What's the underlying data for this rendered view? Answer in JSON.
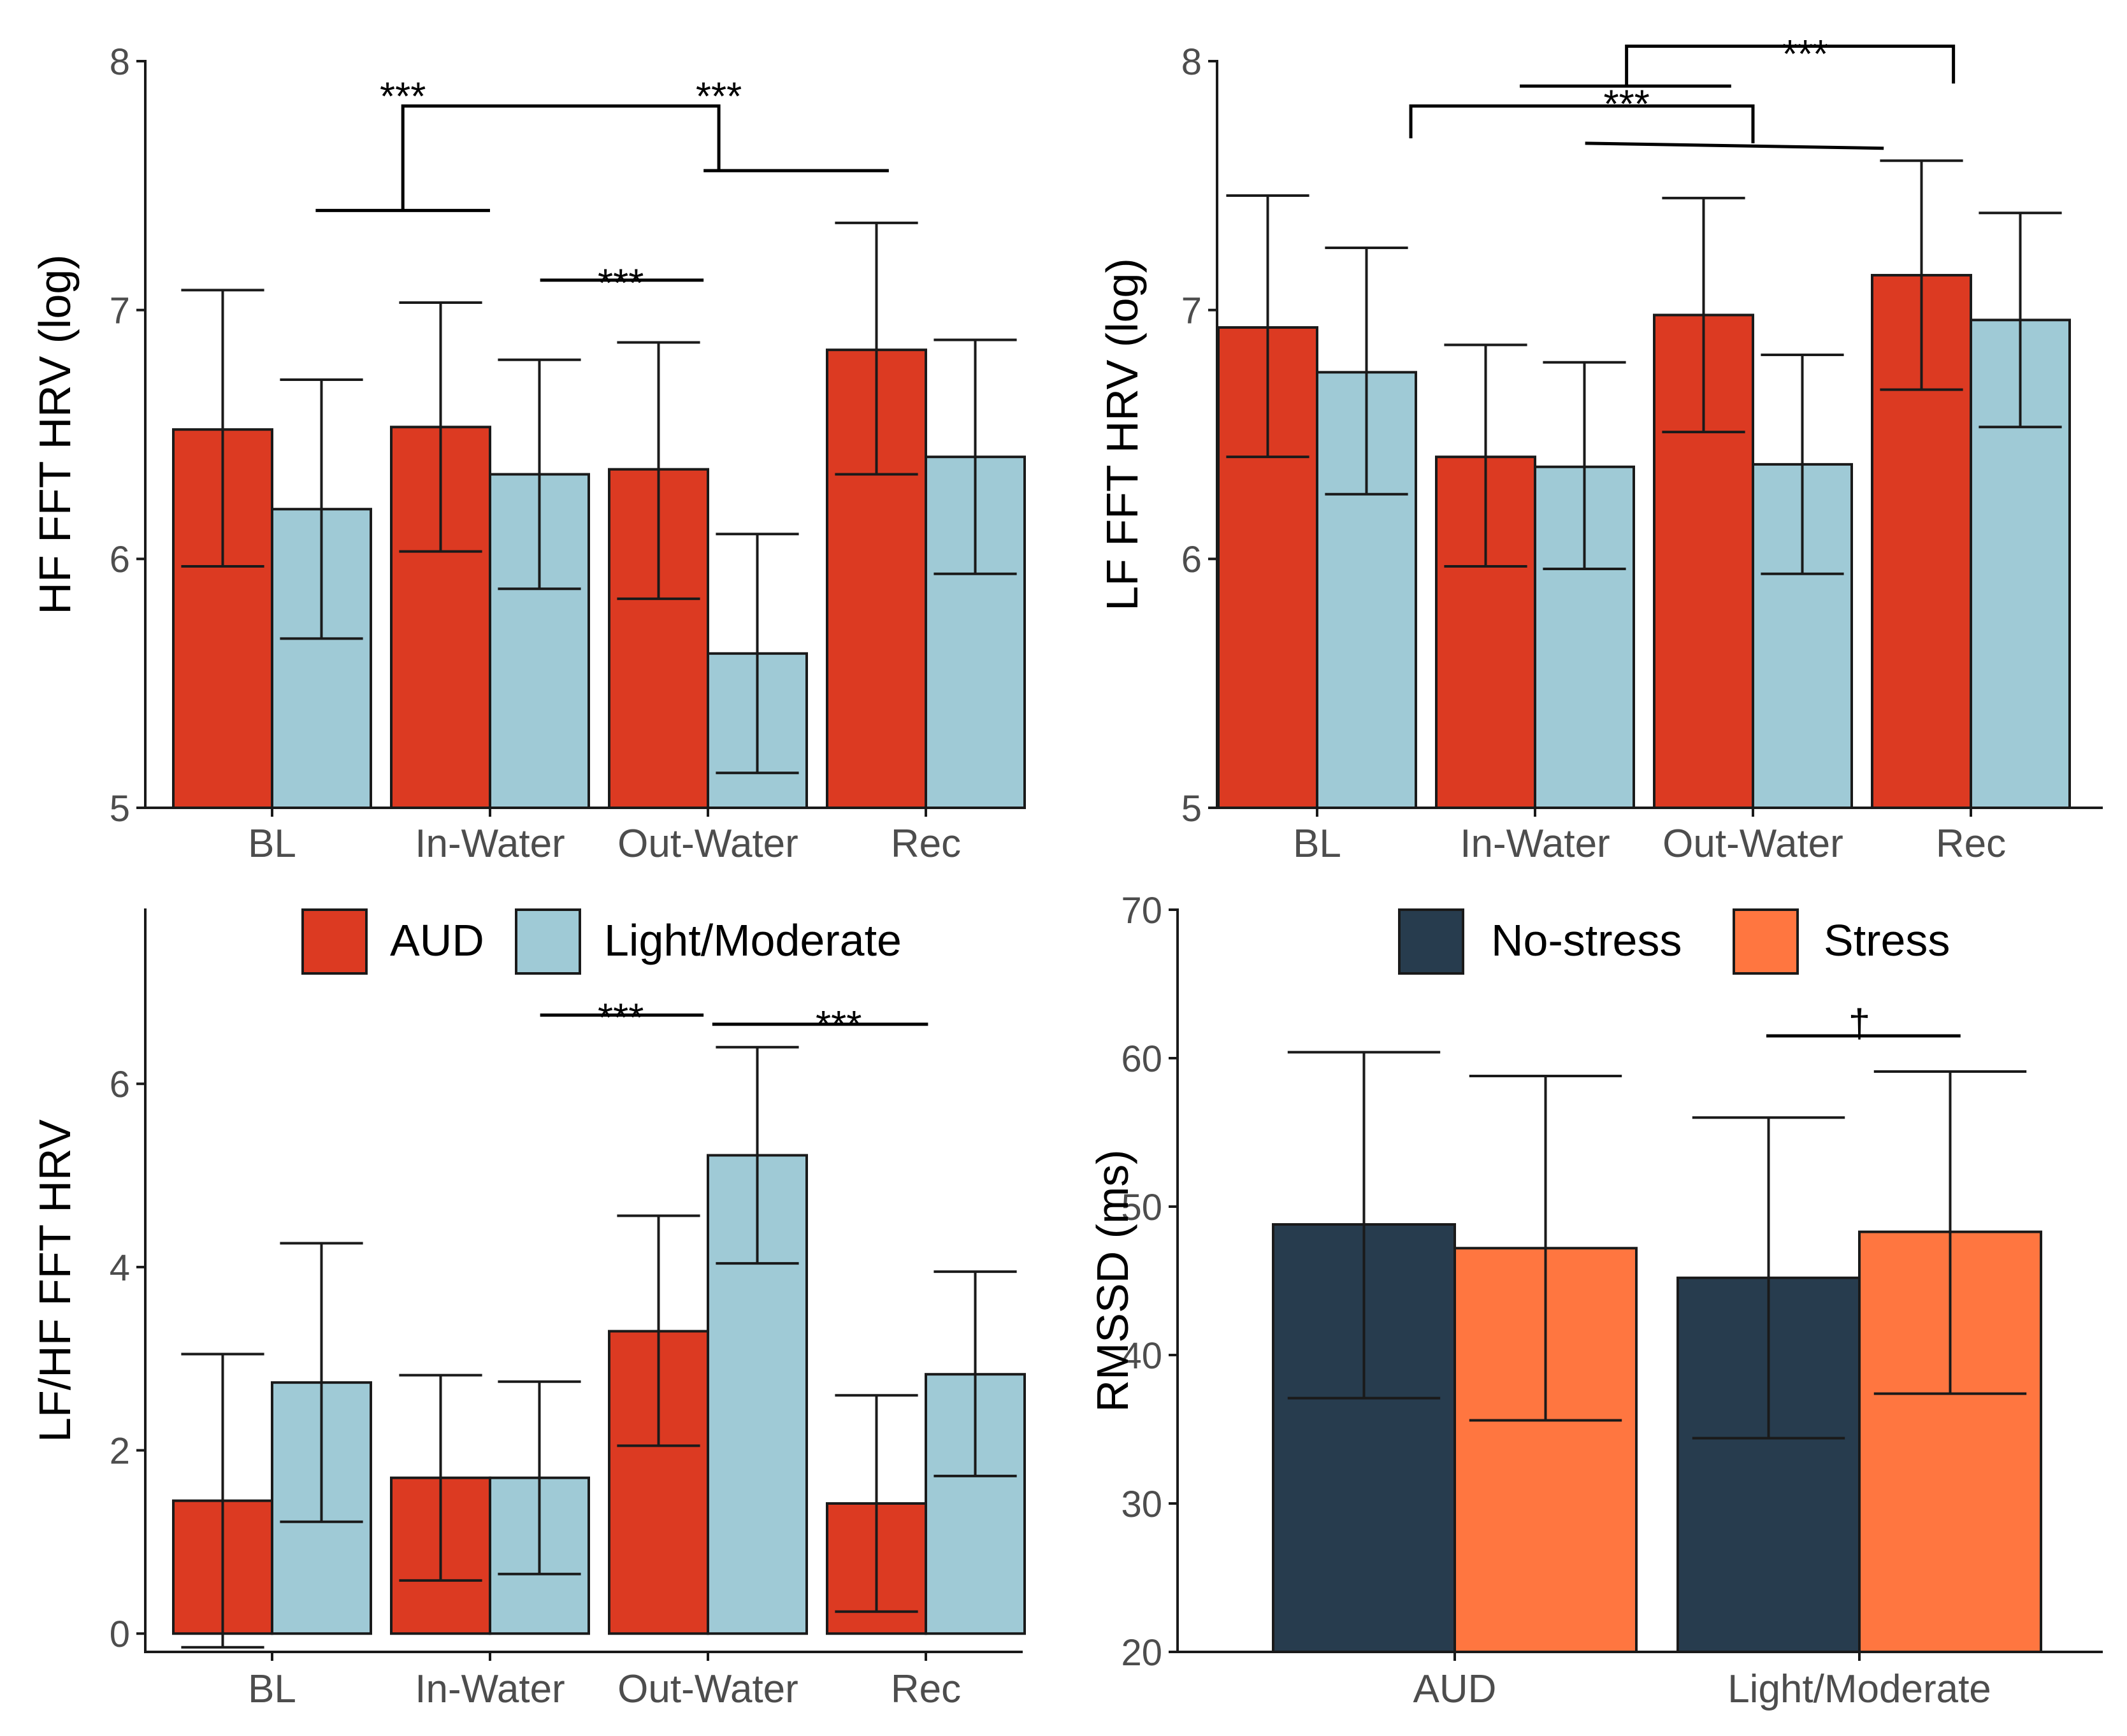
{
  "figure": {
    "bar_stroke": "#1a1a1a",
    "legend_group": {
      "items": [
        {
          "label": "AUD",
          "color": "#DC3A22"
        },
        {
          "label": "Light/Moderate",
          "color": "#9FCAD6"
        }
      ]
    },
    "legend_stress": {
      "items": [
        {
          "label": "No-stress",
          "color": "#273C4E"
        },
        {
          "label": "Stress",
          "color": "#FF7640"
        }
      ]
    }
  },
  "chart_data": [
    {
      "id": "hf",
      "type": "bar",
      "ylabel": "HF FFT HRV (log)",
      "ylim": [
        5,
        8
      ],
      "yticks": [
        "5",
        "6",
        "7",
        "8"
      ],
      "categories": [
        "BL",
        "In-Water",
        "Out-Water",
        "Rec"
      ],
      "series": [
        {
          "name": "AUD",
          "color": "#DC3A22",
          "values": [
            6.52,
            6.53,
            6.36,
            6.84
          ],
          "err_low": [
            5.97,
            6.03,
            5.84,
            6.34
          ],
          "err_high": [
            7.08,
            7.03,
            6.87,
            7.35
          ]
        },
        {
          "name": "Light/Moderate",
          "color": "#9FCAD6",
          "values": [
            6.2,
            6.34,
            5.62,
            6.41
          ],
          "err_low": [
            5.68,
            5.88,
            5.14,
            5.94
          ],
          "err_high": [
            6.72,
            6.8,
            6.1,
            6.88
          ]
        }
      ],
      "annotations": [
        {
          "label": "***",
          "text_x": 1.6,
          "text_y": 7.85,
          "lines": [
            [
              [
                1.2,
                7.4
              ],
              [
                2.0,
                7.4
              ]
            ],
            [
              [
                1.6,
                7.4
              ],
              [
                1.6,
                7.82
              ],
              [
                3.05,
                7.82
              ],
              [
                3.05,
                7.56
              ]
            ],
            [
              [
                2.98,
                7.56
              ],
              [
                3.83,
                7.56
              ]
            ]
          ]
        },
        {
          "label": "***",
          "text_x": 3.05,
          "text_y": 7.85,
          "lines": []
        },
        {
          "label": "***",
          "text_x": 2.6,
          "text_y": 7.1,
          "lines": [
            [
              [
                2.23,
                7.12
              ],
              [
                2.98,
                7.12
              ]
            ]
          ]
        }
      ]
    },
    {
      "id": "lf",
      "type": "bar",
      "ylabel": "LF FFT HRV (log)",
      "ylim": [
        5,
        8
      ],
      "yticks": [
        "5",
        "6",
        "7",
        "8"
      ],
      "categories": [
        "BL",
        "In-Water",
        "Out-Water",
        "Rec"
      ],
      "series": [
        {
          "name": "AUD",
          "color": "#DC3A22",
          "values": [
            6.93,
            6.41,
            6.98,
            7.14
          ],
          "err_low": [
            6.41,
            5.97,
            6.51,
            6.68
          ],
          "err_high": [
            7.46,
            6.86,
            7.45,
            7.6
          ]
        },
        {
          "name": "Light/Moderate",
          "color": "#9FCAD6",
          "values": [
            6.75,
            6.37,
            6.38,
            6.96
          ],
          "err_low": [
            6.26,
            5.96,
            5.94,
            6.53
          ],
          "err_high": [
            7.25,
            6.79,
            6.82,
            7.39
          ]
        }
      ],
      "annotations": [
        {
          "label": "***",
          "text_x": 3.24,
          "text_y": 8.02,
          "lines": [
            [
              [
                1.93,
                7.9
              ],
              [
                2.9,
                7.9
              ]
            ],
            [
              [
                2.42,
                7.9
              ],
              [
                2.42,
                8.06
              ],
              [
                3.92,
                8.06
              ],
              [
                3.92,
                7.91
              ]
            ]
          ]
        },
        {
          "label": "***",
          "text_x": 2.42,
          "text_y": 7.82,
          "lines": [
            [
              [
                1.43,
                7.69
              ],
              [
                1.43,
                7.82
              ],
              [
                3.0,
                7.82
              ],
              [
                3.0,
                7.67
              ]
            ],
            [
              [
                2.23,
                7.67
              ],
              [
                3.6,
                7.65
              ]
            ]
          ]
        }
      ]
    },
    {
      "id": "lfhf",
      "type": "bar",
      "ylabel": "LF/HF FFT HRV",
      "ylim": [
        -0.2,
        7.9
      ],
      "yticks": [
        "0",
        "2",
        "4",
        "6"
      ],
      "ytick_values": [
        0,
        2,
        4,
        6
      ],
      "categories": [
        "BL",
        "In-Water",
        "Out-Water",
        "Rec"
      ],
      "series": [
        {
          "name": "AUD",
          "color": "#DC3A22",
          "values": [
            1.45,
            1.7,
            3.3,
            1.42
          ],
          "err_low": [
            -0.15,
            0.58,
            2.05,
            0.24
          ],
          "err_high": [
            3.05,
            2.82,
            4.56,
            2.6
          ]
        },
        {
          "name": "Light/Moderate",
          "color": "#9FCAD6",
          "values": [
            2.74,
            1.7,
            5.22,
            2.83
          ],
          "err_low": [
            1.22,
            0.65,
            4.04,
            1.72
          ],
          "err_high": [
            4.26,
            2.75,
            6.4,
            3.95
          ]
        }
      ],
      "annotations": [
        {
          "label": "***",
          "text_x": 2.6,
          "text_y": 6.7,
          "lines": [
            [
              [
                2.23,
                6.75
              ],
              [
                2.98,
                6.75
              ]
            ]
          ]
        },
        {
          "label": "***",
          "text_x": 3.6,
          "text_y": 6.62,
          "lines": [
            [
              [
                3.02,
                6.65
              ],
              [
                4.01,
                6.65
              ]
            ]
          ]
        }
      ]
    },
    {
      "id": "rmssd",
      "type": "bar",
      "ylabel": "RMSSD (ms)",
      "ylim": [
        20,
        70
      ],
      "yticks": [
        "20",
        "30",
        "40",
        "50",
        "60",
        "70"
      ],
      "ytick_values": [
        20,
        30,
        40,
        50,
        60,
        70
      ],
      "categories": [
        "AUD",
        "Light/Moderate"
      ],
      "series": [
        {
          "name": "No-stress",
          "color": "#273C4E",
          "values": [
            48.8,
            45.2
          ],
          "err_low": [
            37.1,
            34.4
          ],
          "err_high": [
            60.4,
            56.0
          ]
        },
        {
          "name": "Stress",
          "color": "#FF7640",
          "values": [
            47.2,
            48.3
          ],
          "err_low": [
            35.6,
            37.4
          ],
          "err_high": [
            58.8,
            59.1
          ]
        }
      ],
      "annotations": [
        {
          "label": "†",
          "text_x": 2.0,
          "text_y": 62.2,
          "lines": [
            [
              [
                1.77,
                61.5
              ],
              [
                2.25,
                61.5
              ]
            ]
          ]
        }
      ]
    }
  ]
}
